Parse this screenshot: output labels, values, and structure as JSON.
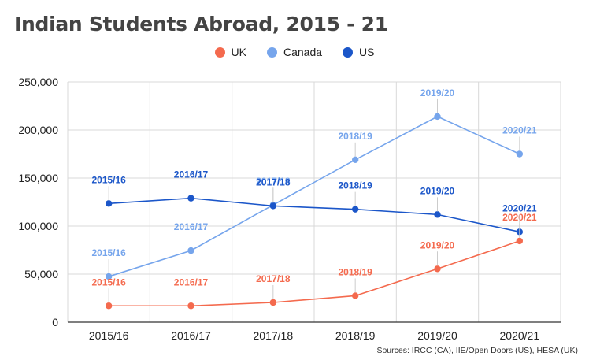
{
  "chart_data": {
    "type": "line",
    "title": "Indian Students Abroad, 2015 - 21",
    "categories": [
      "2015/16",
      "2016/17",
      "2017/18",
      "2018/19",
      "2019/20",
      "2020/21"
    ],
    "ylim": [
      0,
      250000
    ],
    "yticks": [
      0,
      50000,
      100000,
      150000,
      200000,
      250000
    ],
    "ytick_labels": [
      "0",
      "50,000",
      "100,000",
      "150,000",
      "200,000",
      "250,000"
    ],
    "grid": true,
    "legend_position": "top-center",
    "series": [
      {
        "name": "UK",
        "color": "#F46A4E",
        "values": [
          17000,
          17000,
          20500,
          27500,
          55500,
          84500
        ],
        "labels": [
          "2015/16",
          "2016/17",
          "2017/18",
          "2018/19",
          "2019/20",
          "2020/21"
        ]
      },
      {
        "name": "Canada",
        "color": "#76A5EC",
        "values": [
          47500,
          74500,
          122000,
          169000,
          214000,
          175000
        ],
        "labels": [
          "2015/16",
          "2016/17",
          "2017/18",
          "2018/19",
          "2019/20",
          "2020/21"
        ]
      },
      {
        "name": "US",
        "color": "#1B56C9",
        "values": [
          123500,
          129000,
          121000,
          117500,
          112000,
          94000
        ],
        "labels": [
          "2015/16",
          "2016/17",
          "2017/18",
          "2018/19",
          "2019/20",
          "2020/21"
        ]
      }
    ]
  },
  "legend": {
    "items": [
      "UK",
      "Canada",
      "US"
    ]
  },
  "source_note": "Sources: IRCC (CA), IIE/Open Doors (US), HESA (UK)"
}
